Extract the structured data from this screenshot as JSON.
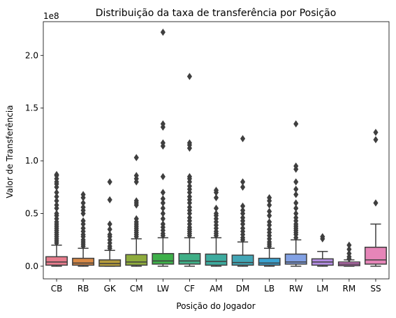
{
  "chart_data": {
    "type": "box",
    "title": "Distribuição da taxa de transferência por Posição",
    "xlabel": "Posição do Jogador",
    "ylabel": "Valor de Transferência",
    "y_offset_label": "1e8",
    "y_scale": 100000000,
    "ylim": [
      -0.12,
      2.32
    ],
    "y_ticks": [
      0.0,
      0.5,
      1.0,
      1.5,
      2.0
    ],
    "y_tick_labels": [
      "0.0",
      "0.5",
      "1.0",
      "1.5",
      "2.0"
    ],
    "grid": false,
    "series": [
      {
        "category": "CB",
        "color": "#e77c8d",
        "whisker_low": 0.0,
        "q1": 0.01,
        "median": 0.04,
        "q3": 0.09,
        "whisker_high": 0.2,
        "outliers": [
          0.22,
          0.24,
          0.26,
          0.28,
          0.3,
          0.32,
          0.34,
          0.36,
          0.38,
          0.4,
          0.42,
          0.45,
          0.48,
          0.5,
          0.55,
          0.58,
          0.62,
          0.66,
          0.7,
          0.75,
          0.78,
          0.8,
          0.83,
          0.86,
          0.87
        ]
      },
      {
        "category": "RB",
        "color": "#da8a46",
        "whisker_low": 0.0,
        "q1": 0.01,
        "median": 0.03,
        "q3": 0.075,
        "whisker_high": 0.17,
        "outliers": [
          0.19,
          0.21,
          0.23,
          0.25,
          0.28,
          0.3,
          0.33,
          0.36,
          0.4,
          0.43,
          0.5,
          0.53,
          0.56,
          0.6,
          0.65,
          0.68
        ]
      },
      {
        "category": "GK",
        "color": "#b59c3c",
        "whisker_low": 0.0,
        "q1": 0.0,
        "median": 0.025,
        "q3": 0.06,
        "whisker_high": 0.15,
        "outliers": [
          0.17,
          0.19,
          0.22,
          0.25,
          0.28,
          0.3,
          0.35,
          0.4,
          0.63,
          0.8
        ]
      },
      {
        "category": "CM",
        "color": "#8fac3d",
        "whisker_low": 0.0,
        "q1": 0.01,
        "median": 0.04,
        "q3": 0.11,
        "whisker_high": 0.26,
        "outliers": [
          0.28,
          0.3,
          0.32,
          0.34,
          0.36,
          0.38,
          0.4,
          0.42,
          0.45,
          0.58,
          0.6,
          0.62,
          0.8,
          0.83,
          0.86,
          1.03
        ]
      },
      {
        "category": "LW",
        "color": "#3eb04a",
        "whisker_low": 0.0,
        "q1": 0.02,
        "median": 0.05,
        "q3": 0.12,
        "whisker_high": 0.27,
        "outliers": [
          0.29,
          0.31,
          0.34,
          0.37,
          0.4,
          0.45,
          0.5,
          0.55,
          0.6,
          0.64,
          0.7,
          0.85,
          1.14,
          1.17,
          1.32,
          1.35,
          2.22
        ]
      },
      {
        "category": "CF",
        "color": "#3faf86",
        "whisker_low": 0.0,
        "q1": 0.02,
        "median": 0.05,
        "q3": 0.12,
        "whisker_high": 0.27,
        "outliers": [
          0.29,
          0.31,
          0.33,
          0.35,
          0.37,
          0.4,
          0.43,
          0.46,
          0.5,
          0.53,
          0.56,
          0.6,
          0.63,
          0.66,
          0.7,
          0.73,
          0.76,
          0.8,
          0.83,
          0.85,
          1.12,
          1.15,
          1.17,
          1.8
        ]
      },
      {
        "category": "AM",
        "color": "#3dab9f",
        "whisker_low": 0.0,
        "q1": 0.01,
        "median": 0.045,
        "q3": 0.115,
        "whisker_high": 0.27,
        "outliers": [
          0.29,
          0.31,
          0.33,
          0.36,
          0.39,
          0.42,
          0.45,
          0.48,
          0.5,
          0.55,
          0.65,
          0.7,
          0.72
        ]
      },
      {
        "category": "DM",
        "color": "#42a6b6",
        "whisker_low": 0.0,
        "q1": 0.01,
        "median": 0.035,
        "q3": 0.105,
        "whisker_high": 0.23,
        "outliers": [
          0.25,
          0.27,
          0.3,
          0.33,
          0.36,
          0.4,
          0.43,
          0.46,
          0.5,
          0.53,
          0.57,
          0.75,
          0.8,
          1.21
        ]
      },
      {
        "category": "LB",
        "color": "#3ba4d2",
        "whisker_low": 0.0,
        "q1": 0.01,
        "median": 0.03,
        "q3": 0.075,
        "whisker_high": 0.17,
        "outliers": [
          0.19,
          0.21,
          0.23,
          0.26,
          0.29,
          0.32,
          0.35,
          0.39,
          0.42,
          0.48,
          0.52,
          0.58,
          0.62,
          0.65
        ]
      },
      {
        "category": "RW",
        "color": "#82a1e4",
        "whisker_low": 0.0,
        "q1": 0.02,
        "median": 0.04,
        "q3": 0.115,
        "whisker_high": 0.25,
        "outliers": [
          0.27,
          0.3,
          0.32,
          0.34,
          0.36,
          0.38,
          0.4,
          0.43,
          0.46,
          0.5,
          0.55,
          0.6,
          0.68,
          0.73,
          0.8,
          0.92,
          0.95,
          1.35
        ]
      },
      {
        "category": "LM",
        "color": "#b48ee3",
        "whisker_low": 0.0,
        "q1": 0.01,
        "median": 0.04,
        "q3": 0.07,
        "whisker_high": 0.14,
        "outliers": [
          0.26,
          0.28
        ]
      },
      {
        "category": "RM",
        "color": "#e37ad7",
        "whisker_low": 0.0,
        "q1": 0.005,
        "median": 0.02,
        "q3": 0.04,
        "whisker_high": 0.06,
        "outliers": [
          0.07,
          0.09,
          0.12,
          0.16,
          0.2
        ]
      },
      {
        "category": "SS",
        "color": "#e685b8",
        "whisker_low": 0.0,
        "q1": 0.02,
        "median": 0.06,
        "q3": 0.18,
        "whisker_high": 0.4,
        "outliers": [
          0.6,
          1.2,
          1.27
        ]
      }
    ]
  }
}
